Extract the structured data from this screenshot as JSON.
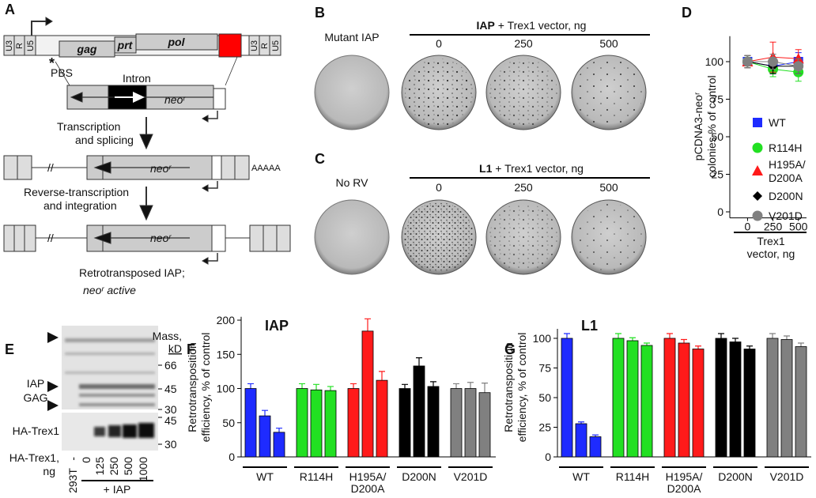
{
  "panel_labels": [
    "A",
    "B",
    "C",
    "D",
    "E",
    "F",
    "G"
  ],
  "diagram": {
    "ltr_left": [
      "U3",
      "R",
      "U5"
    ],
    "genes": [
      "gag",
      "prt",
      "pol"
    ],
    "ltr_right": [
      "U3",
      "R",
      "U5"
    ],
    "star": "*",
    "pbs": "PBS",
    "intron": "Intron",
    "neo": "neoʳ",
    "step1": [
      "Transcription",
      "and splicing"
    ],
    "break": "//",
    "polya": "AAAAA",
    "step2": [
      "Reverse-transcription",
      "and integration"
    ],
    "result": [
      "Retrotransposed IAP;",
      "neoʳ active"
    ]
  },
  "plates": {
    "B": {
      "control": "Mutant IAP",
      "header_bold": "IAP",
      "header": " + Trex1 vector, ng",
      "doses": [
        0,
        250,
        500
      ]
    },
    "C": {
      "control": "No RV",
      "header_bold": "L1",
      "header": " + Trex1 vector, ng",
      "doses": [
        0,
        250,
        500
      ]
    }
  },
  "western": {
    "mass": [
      "Mass,",
      "kD"
    ],
    "markers_top": [
      66,
      45,
      30
    ],
    "markers_bottom": [
      45,
      30
    ],
    "gag": [
      "IAP",
      "GAG"
    ],
    "trex": "HA-Trex1",
    "dose_label": [
      "HA-Trex1,",
      "ng"
    ],
    "lanes": [
      "-",
      0,
      125,
      250,
      500,
      1000
    ],
    "control": "293T",
    "iap": "+ IAP"
  },
  "chart_data": [
    {
      "type": "line",
      "ylabel": [
        "pCDNA3-neoʳ",
        "colonies % of control"
      ],
      "xlabel": [
        "Trex1",
        "vector, ng"
      ],
      "x": [
        0,
        250,
        500
      ],
      "xlim": [
        -120,
        580
      ],
      "xticks": [
        0,
        250,
        500
      ],
      "ylim": [
        -4,
        117
      ],
      "yticks": [
        0,
        25,
        50,
        75,
        100
      ],
      "series": [
        {
          "name": "WT",
          "color": "#1e2bff",
          "marker": "square",
          "values": [
            100,
            97,
            100
          ],
          "errors": [
            4,
            5,
            6
          ]
        },
        {
          "name": "R114H",
          "color": "#22e022",
          "marker": "circle",
          "values": [
            100,
            95,
            93
          ],
          "errors": [
            4,
            5,
            6
          ]
        },
        {
          "name": "H195A/D200A",
          "color": "#ff1a1a",
          "marker": "triangle",
          "values": [
            100,
            103,
            102
          ],
          "errors": [
            4,
            10,
            6
          ]
        },
        {
          "name": "D200N",
          "color": "#000000",
          "marker": "diamond",
          "values": [
            100,
            97,
            97
          ],
          "errors": [
            4,
            5,
            5
          ]
        },
        {
          "name": "V201D",
          "color": "#808080",
          "marker": "circle",
          "values": [
            100,
            100,
            97
          ],
          "errors": [
            4,
            5,
            5
          ]
        }
      ]
    },
    {
      "type": "bar",
      "title": "IAP",
      "ylabel": [
        "Retrotransposition",
        "efficiency, % of control"
      ],
      "ylim": [
        0,
        205
      ],
      "yticks": [
        0,
        50,
        100,
        150,
        200
      ],
      "series": [
        {
          "name": "WT",
          "color": "#1e2bff",
          "values": [
            100,
            60,
            36
          ],
          "errors": [
            7,
            8,
            6
          ]
        },
        {
          "name": "R114H",
          "color": "#22e022",
          "values": [
            100,
            98,
            97
          ],
          "errors": [
            7,
            8,
            6
          ]
        },
        {
          "name": "H195A/D200A",
          "color": "#ff1a1a",
          "values": [
            100,
            184,
            112
          ],
          "errors": [
            7,
            18,
            13
          ]
        },
        {
          "name": "D200N",
          "color": "#000000",
          "values": [
            100,
            133,
            103
          ],
          "errors": [
            6,
            12,
            7
          ]
        },
        {
          "name": "V201D",
          "color": "#808080",
          "values": [
            100,
            100,
            94
          ],
          "errors": [
            7,
            9,
            14
          ]
        }
      ]
    },
    {
      "type": "bar",
      "title": "L1",
      "ylabel": [
        "Retrotransposition",
        "efficiency, % of control"
      ],
      "ylim": [
        0,
        108
      ],
      "yticks": [
        0,
        25,
        50,
        75,
        100
      ],
      "series": [
        {
          "name": "WT",
          "color": "#1e2bff",
          "values": [
            100,
            28,
            17
          ],
          "errors": [
            4,
            1.5,
            1.5
          ]
        },
        {
          "name": "R114H",
          "color": "#22e022",
          "values": [
            100,
            98,
            94
          ],
          "errors": [
            4,
            2.5,
            2
          ]
        },
        {
          "name": "H195A/D200A",
          "color": "#ff1a1a",
          "values": [
            100,
            96,
            91
          ],
          "errors": [
            4,
            3,
            2.5
          ]
        },
        {
          "name": "D200N",
          "color": "#000000",
          "values": [
            100,
            97,
            91
          ],
          "errors": [
            4,
            3,
            2.5
          ]
        },
        {
          "name": "V201D",
          "color": "#808080",
          "values": [
            100,
            99,
            93
          ],
          "errors": [
            4,
            3,
            3
          ]
        }
      ]
    }
  ]
}
